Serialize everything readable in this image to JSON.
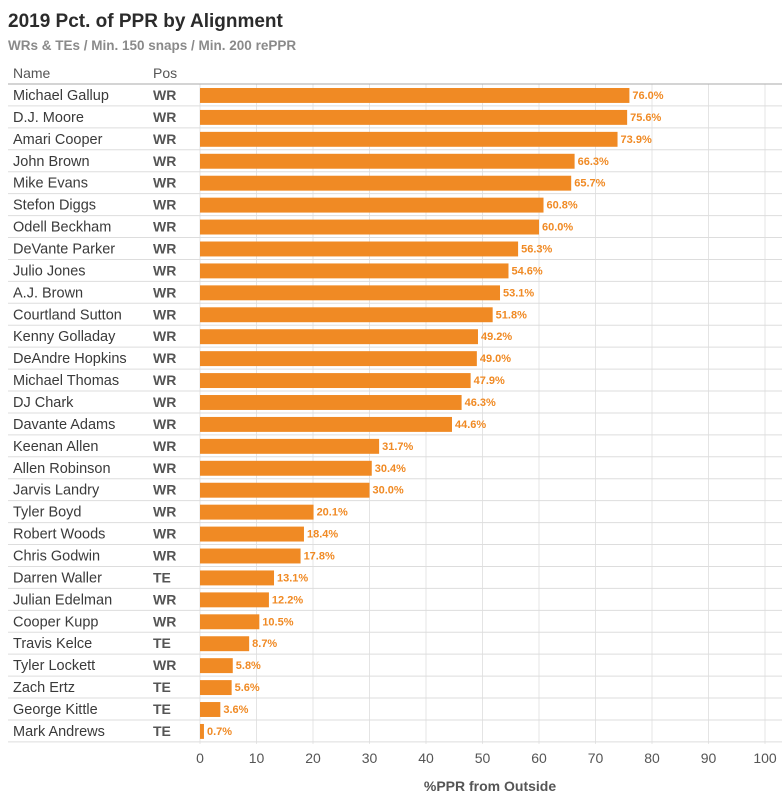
{
  "colors": {
    "bar": "#f08a24",
    "row_line": "#dddddd",
    "grid_line": "#e4e4e4",
    "header_line": "#aaaaaa"
  },
  "chart_data": {
    "type": "bar",
    "orientation": "horizontal",
    "title": "2019 Pct. of PPR by Alignment",
    "subtitle": "WRs & TEs / Min. 150 snaps / Min. 200 rePPR",
    "columns": {
      "name": "Name",
      "pos": "Pos"
    },
    "xlabel": "%PPR from Outside",
    "xlim": [
      0,
      100
    ],
    "xticks": [
      "0",
      "10",
      "20",
      "30",
      "40",
      "50",
      "60",
      "70",
      "80",
      "90",
      "100"
    ],
    "grid": true,
    "rows": [
      {
        "name": "Michael Gallup",
        "pos": "WR",
        "value": 76.0,
        "label": "76.0%"
      },
      {
        "name": "D.J. Moore",
        "pos": "WR",
        "value": 75.6,
        "label": "75.6%"
      },
      {
        "name": "Amari Cooper",
        "pos": "WR",
        "value": 73.9,
        "label": "73.9%"
      },
      {
        "name": "John Brown",
        "pos": "WR",
        "value": 66.3,
        "label": "66.3%"
      },
      {
        "name": "Mike Evans",
        "pos": "WR",
        "value": 65.7,
        "label": "65.7%"
      },
      {
        "name": "Stefon Diggs",
        "pos": "WR",
        "value": 60.8,
        "label": "60.8%"
      },
      {
        "name": "Odell Beckham",
        "pos": "WR",
        "value": 60.0,
        "label": "60.0%"
      },
      {
        "name": "DeVante Parker",
        "pos": "WR",
        "value": 56.3,
        "label": "56.3%"
      },
      {
        "name": "Julio Jones",
        "pos": "WR",
        "value": 54.6,
        "label": "54.6%"
      },
      {
        "name": "A.J. Brown",
        "pos": "WR",
        "value": 53.1,
        "label": "53.1%"
      },
      {
        "name": "Courtland Sutton",
        "pos": "WR",
        "value": 51.8,
        "label": "51.8%"
      },
      {
        "name": "Kenny Golladay",
        "pos": "WR",
        "value": 49.2,
        "label": "49.2%"
      },
      {
        "name": "DeAndre Hopkins",
        "pos": "WR",
        "value": 49.0,
        "label": "49.0%"
      },
      {
        "name": "Michael Thomas",
        "pos": "WR",
        "value": 47.9,
        "label": "47.9%"
      },
      {
        "name": "DJ Chark",
        "pos": "WR",
        "value": 46.3,
        "label": "46.3%"
      },
      {
        "name": "Davante Adams",
        "pos": "WR",
        "value": 44.6,
        "label": "44.6%"
      },
      {
        "name": "Keenan Allen",
        "pos": "WR",
        "value": 31.7,
        "label": "31.7%"
      },
      {
        "name": "Allen Robinson",
        "pos": "WR",
        "value": 30.4,
        "label": "30.4%"
      },
      {
        "name": "Jarvis Landry",
        "pos": "WR",
        "value": 30.0,
        "label": "30.0%"
      },
      {
        "name": "Tyler Boyd",
        "pos": "WR",
        "value": 20.1,
        "label": "20.1%"
      },
      {
        "name": "Robert Woods",
        "pos": "WR",
        "value": 18.4,
        "label": "18.4%"
      },
      {
        "name": "Chris Godwin",
        "pos": "WR",
        "value": 17.8,
        "label": "17.8%"
      },
      {
        "name": "Darren Waller",
        "pos": "TE",
        "value": 13.1,
        "label": "13.1%"
      },
      {
        "name": "Julian Edelman",
        "pos": "WR",
        "value": 12.2,
        "label": "12.2%"
      },
      {
        "name": "Cooper Kupp",
        "pos": "WR",
        "value": 10.5,
        "label": "10.5%"
      },
      {
        "name": "Travis Kelce",
        "pos": "TE",
        "value": 8.7,
        "label": "8.7%"
      },
      {
        "name": "Tyler Lockett",
        "pos": "WR",
        "value": 5.8,
        "label": "5.8%"
      },
      {
        "name": "Zach Ertz",
        "pos": "TE",
        "value": 5.6,
        "label": "5.6%"
      },
      {
        "name": "George Kittle",
        "pos": "TE",
        "value": 3.6,
        "label": "3.6%"
      },
      {
        "name": "Mark Andrews",
        "pos": "TE",
        "value": 0.7,
        "label": "0.7%"
      }
    ]
  }
}
